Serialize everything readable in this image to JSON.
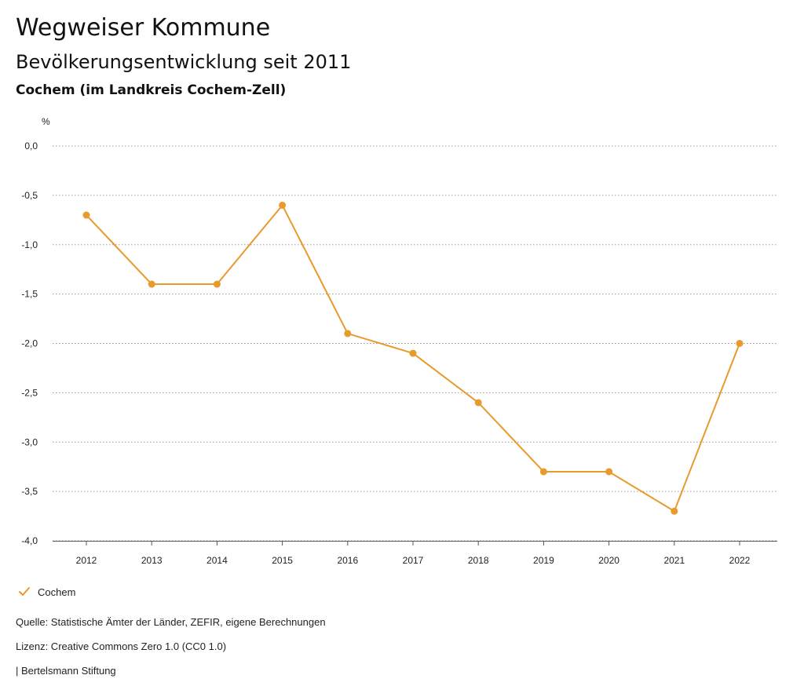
{
  "header": {
    "title": "Wegweiser Kommune",
    "subtitle": "Bevölkerungsentwicklung seit 2011",
    "region": "Cochem (im Landkreis Cochem-Zell)"
  },
  "chart_data": {
    "type": "line",
    "title": "Bevölkerungsentwicklung seit 2011",
    "xlabel": "",
    "ylabel": "%",
    "ylim": [
      -4.0,
      0.0
    ],
    "yticks": [
      "0,0",
      "-0,5",
      "-1,0",
      "-1,5",
      "-2,0",
      "-2,5",
      "-3,0",
      "-3,5",
      "-4,0"
    ],
    "ytick_values": [
      0.0,
      -0.5,
      -1.0,
      -1.5,
      -2.0,
      -2.5,
      -3.0,
      -3.5,
      -4.0
    ],
    "grid": true,
    "legend_position": "bottom-left",
    "x": [
      "2012",
      "2013",
      "2014",
      "2015",
      "2016",
      "2017",
      "2018",
      "2019",
      "2020",
      "2021",
      "2022"
    ],
    "series": [
      {
        "name": "Cochem",
        "color": "#E99A2C",
        "values": [
          -0.7,
          -1.4,
          -1.4,
          -0.6,
          -1.9,
          -2.1,
          -2.6,
          -3.3,
          -3.3,
          -3.7,
          -2.0
        ]
      }
    ]
  },
  "legend": {
    "label": "Cochem",
    "icon": "check-icon",
    "color": "#E99A2C"
  },
  "footer": {
    "source": "Quelle: Statistische Ämter der Länder, ZEFIR, eigene Berechnungen",
    "license": "Lizenz: Creative Commons Zero 1.0 (CC0 1.0)",
    "publisher": "| Bertelsmann Stiftung"
  }
}
